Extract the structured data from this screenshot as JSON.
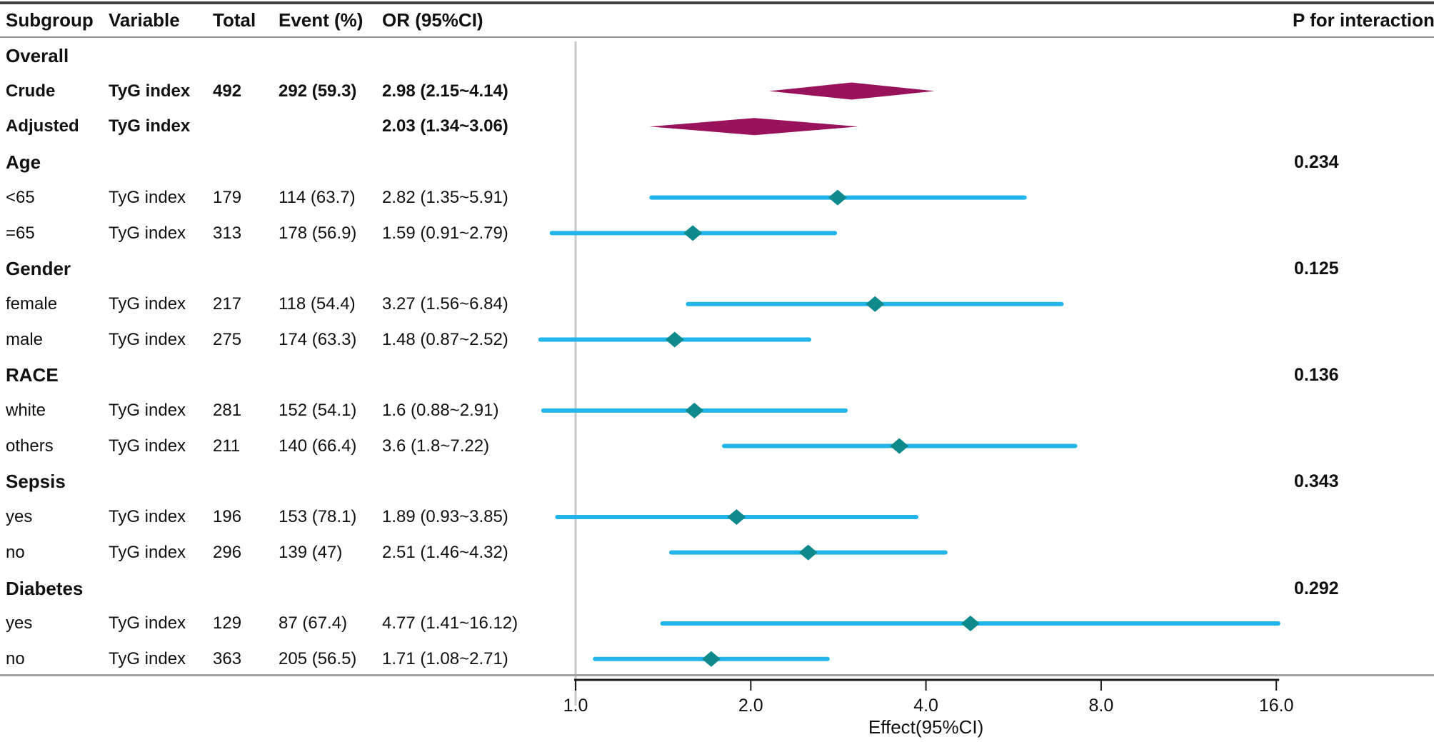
{
  "figure": {
    "header": {
      "columns": [
        {
          "key": "subgroup",
          "label": "Subgroup"
        },
        {
          "key": "variable",
          "label": "Variable"
        },
        {
          "key": "total",
          "label": "Total"
        },
        {
          "key": "event",
          "label": "Event (%)"
        },
        {
          "key": "or_ci",
          "label": "OR (95%CI)"
        },
        {
          "key": "p",
          "label": "P for interaction"
        }
      ]
    },
    "rows": [
      {
        "style": "section",
        "cells": {
          "subgroup": "Overall"
        }
      },
      {
        "style": "bold",
        "cells": {
          "subgroup": "Crude",
          "variable": "TyG index",
          "total": "492",
          "event": "292 (59.3)",
          "or_ci": "2.98 (2.15~4.14)"
        }
      },
      {
        "style": "bold",
        "cells": {
          "subgroup": "Adjusted",
          "variable": "TyG index",
          "or_ci": "2.03 (1.34~3.06)"
        }
      },
      {
        "style": "section",
        "cells": {
          "subgroup": "Age",
          "p": "0.234"
        }
      },
      {
        "style": "normal",
        "cells": {
          "subgroup": "<65",
          "variable": "TyG index",
          "total": "179",
          "event": "114 (63.7)",
          "or_ci": "2.82 (1.35~5.91)"
        }
      },
      {
        "style": "normal",
        "cells": {
          "subgroup": "=65",
          "variable": "TyG index",
          "total": "313",
          "event": "178 (56.9)",
          "or_ci": "1.59 (0.91~2.79)"
        }
      },
      {
        "style": "section",
        "cells": {
          "subgroup": "Gender",
          "p": "0.125"
        }
      },
      {
        "style": "normal",
        "cells": {
          "subgroup": "female",
          "variable": "TyG index",
          "total": "217",
          "event": "118 (54.4)",
          "or_ci": "3.27 (1.56~6.84)"
        }
      },
      {
        "style": "normal",
        "cells": {
          "subgroup": "male",
          "variable": "TyG index",
          "total": "275",
          "event": "174 (63.3)",
          "or_ci": "1.48 (0.87~2.52)"
        }
      },
      {
        "style": "section",
        "cells": {
          "subgroup": "RACE",
          "p": "0.136"
        }
      },
      {
        "style": "normal",
        "cells": {
          "subgroup": "white",
          "variable": "TyG index",
          "total": "281",
          "event": "152 (54.1)",
          "or_ci": "1.6 (0.88~2.91)"
        }
      },
      {
        "style": "normal",
        "cells": {
          "subgroup": "others",
          "variable": "TyG index",
          "total": "211",
          "event": "140 (66.4)",
          "or_ci": "3.6 (1.8~7.22)"
        }
      },
      {
        "style": "section",
        "cells": {
          "subgroup": "Sepsis",
          "p": "0.343"
        }
      },
      {
        "style": "normal",
        "cells": {
          "subgroup": "yes",
          "variable": "TyG index",
          "total": "196",
          "event": "153 (78.1)",
          "or_ci": "1.89 (0.93~3.85)"
        }
      },
      {
        "style": "normal",
        "cells": {
          "subgroup": "no",
          "variable": "TyG index",
          "total": "296",
          "event": "139 (47)",
          "or_ci": "2.51 (1.46~4.32)"
        }
      },
      {
        "style": "section",
        "cells": {
          "subgroup": "Diabetes",
          "p": "0.292"
        }
      },
      {
        "style": "normal",
        "cells": {
          "subgroup": "yes",
          "variable": "TyG index",
          "total": "129",
          "event": "87 (67.4)",
          "or_ci": "4.77 (1.41~16.12)"
        }
      },
      {
        "style": "normal",
        "cells": {
          "subgroup": "no",
          "variable": "TyG index",
          "total": "363",
          "event": "205 (56.5)",
          "or_ci": "1.71 (1.08~2.71)"
        }
      }
    ]
  },
  "chart_data": {
    "type": "scatter",
    "variant": "forest-plot",
    "xlabel": "Effect(95%CI)",
    "x_scale": "log2",
    "x_range": [
      1.0,
      16.0
    ],
    "reference_x": 1.0,
    "x_ticks": [
      {
        "value": 1,
        "label": "1.0"
      },
      {
        "value": 2,
        "label": "2.0"
      },
      {
        "value": 4,
        "label": "4.0"
      },
      {
        "value": 8,
        "label": "8.0"
      },
      {
        "value": 16,
        "label": "16.0"
      }
    ],
    "summaries": [
      {
        "name": "Crude TyG index",
        "row": 1,
        "est": 2.98,
        "lo": 2.15,
        "hi": 4.14
      },
      {
        "name": "Adjusted TyG index",
        "row": 2,
        "est": 2.03,
        "lo": 1.34,
        "hi": 3.06
      }
    ],
    "points": [
      {
        "name": "Age <65",
        "row": 4,
        "est": 2.82,
        "lo": 1.35,
        "hi": 5.91
      },
      {
        "name": "Age =65",
        "row": 5,
        "est": 1.59,
        "lo": 0.91,
        "hi": 2.79
      },
      {
        "name": "Gender female",
        "row": 7,
        "est": 3.27,
        "lo": 1.56,
        "hi": 6.84
      },
      {
        "name": "Gender male",
        "row": 8,
        "est": 1.48,
        "lo": 0.87,
        "hi": 2.52
      },
      {
        "name": "RACE white",
        "row": 10,
        "est": 1.6,
        "lo": 0.88,
        "hi": 2.91
      },
      {
        "name": "RACE others",
        "row": 11,
        "est": 3.6,
        "lo": 1.8,
        "hi": 7.22
      },
      {
        "name": "Sepsis yes",
        "row": 13,
        "est": 1.89,
        "lo": 0.93,
        "hi": 3.85
      },
      {
        "name": "Sepsis no",
        "row": 14,
        "est": 2.51,
        "lo": 1.46,
        "hi": 4.32
      },
      {
        "name": "Diabetes yes",
        "row": 16,
        "est": 4.77,
        "lo": 1.41,
        "hi": 16.12
      },
      {
        "name": "Diabetes no",
        "row": 17,
        "est": 1.71,
        "lo": 1.08,
        "hi": 2.71
      }
    ],
    "p_for_interaction": [
      {
        "group": "Age",
        "p": "0.234"
      },
      {
        "group": "Gender",
        "p": "0.125"
      },
      {
        "group": "RACE",
        "p": "0.136"
      },
      {
        "group": "Sepsis",
        "p": "0.343"
      },
      {
        "group": "Diabetes",
        "p": "0.292"
      }
    ]
  },
  "colors": {
    "ci_line": "#22b5e9",
    "point_marker": "#0e8a8c",
    "summary_diamond": "#99125c",
    "reference_line": "#c9c9c9",
    "axis": "#1a1a1a",
    "text": "#111111"
  }
}
